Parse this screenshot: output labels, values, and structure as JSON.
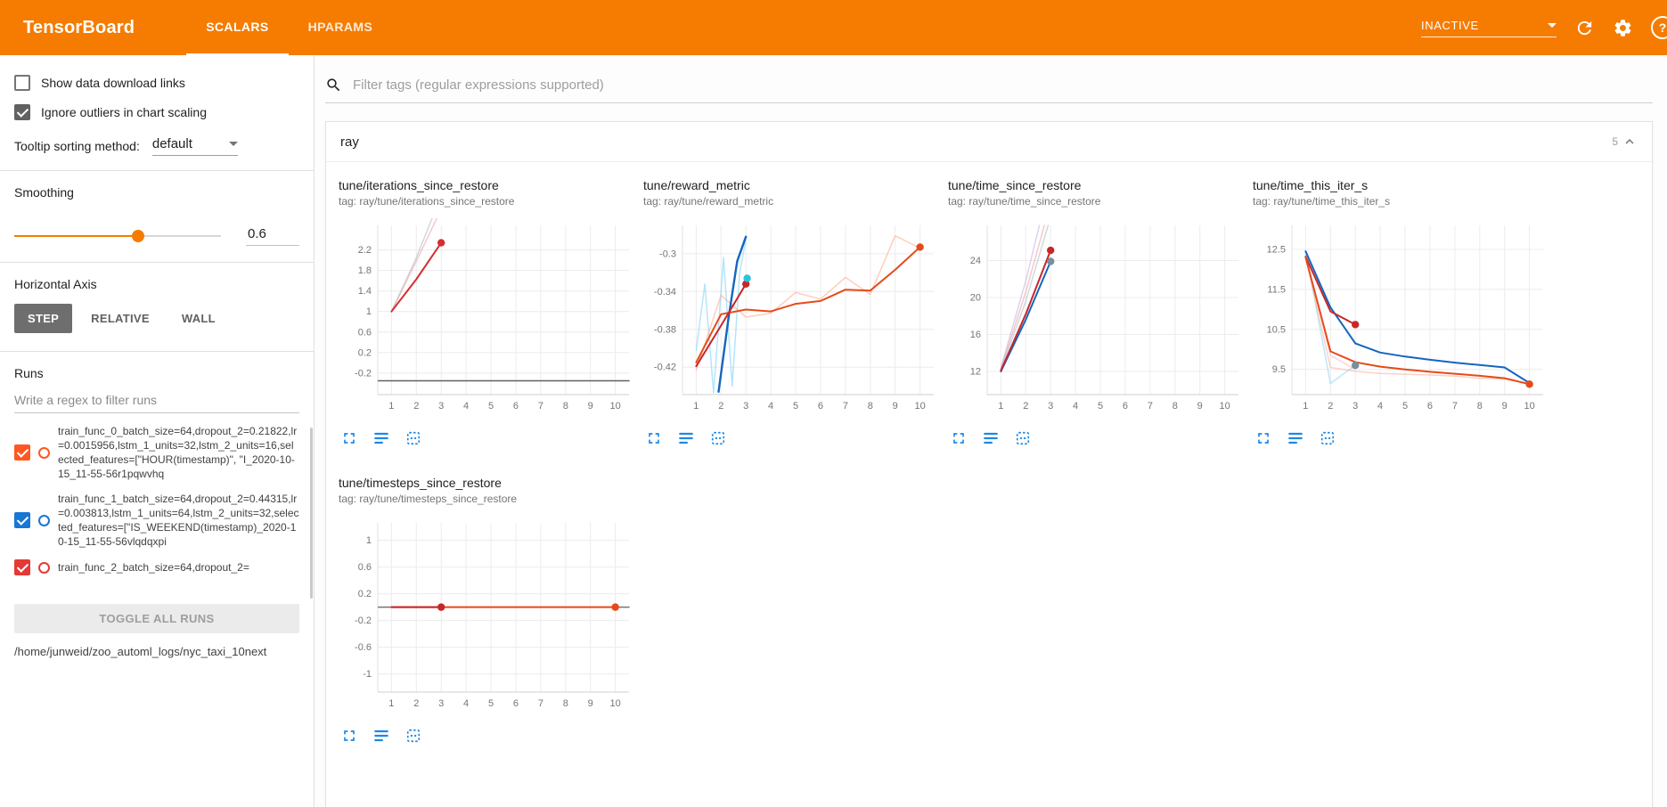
{
  "colors": {
    "accent": "#f57c00",
    "icon_blue": "#1e88e5",
    "run0": "#ff5722",
    "run1": "#1976d2"
  },
  "icons": {
    "search": "magnifier",
    "refresh": "circular-arrow",
    "settings": "gear",
    "help": "question-circle",
    "dropdown-caret": "triangle-down",
    "collapse": "chevron-up",
    "fullscreen": "corner-brackets",
    "flip-axis": "stacked-lines",
    "pin": "dashed-square"
  },
  "header": {
    "title": "TensorBoard",
    "tabs": [
      {
        "label": "SCALARS",
        "active": true
      },
      {
        "label": "HPARAMS",
        "active": false
      }
    ],
    "status": "INACTIVE"
  },
  "sidebar": {
    "options": [
      {
        "label": "Show data download links",
        "checked": false
      },
      {
        "label": "Ignore outliers in chart scaling",
        "checked": true
      }
    ],
    "tooltip_sorting_label": "Tooltip sorting method:",
    "tooltip_sorting_value": "default",
    "smoothing_label": "Smoothing",
    "smoothing_value": "0.6",
    "horizontal_axis_label": "Horizontal Axis",
    "axis_options": [
      {
        "label": "STEP",
        "selected": true
      },
      {
        "label": "RELATIVE",
        "selected": false
      },
      {
        "label": "WALL",
        "selected": false
      }
    ],
    "runs_label": "Runs",
    "runs_filter_placeholder": "Write a regex to filter runs",
    "runs": [
      {
        "label": "train_func_0_batch_size=64,dropout_2=0.21822,lr=0.0015956,lstm_1_units=32,lstm_2_units=16,selected_features=[\"HOUR(timestamp)\", \"I_2020-10-15_11-55-56r1pqwvhq",
        "checked": true,
        "color": "#ff5722"
      },
      {
        "label": "train_func_1_batch_size=64,dropout_2=0.44315,lr=0.003813,lstm_1_units=64,lstm_2_units=32,selected_features=[\"IS_WEEKEND(timestamp)_2020-10-15_11-55-56vlqdqxpi",
        "checked": true,
        "color": "#1976d2"
      },
      {
        "label": "train_func_2_batch_size=64,dropout_2=",
        "checked": true,
        "color": "#e53935"
      }
    ],
    "toggle_all_label": "TOGGLE ALL RUNS",
    "log_dir": "/home/junweid/zoo_automl_logs/nyc_taxi_10next"
  },
  "main": {
    "filter_placeholder": "Filter tags (regular expressions supported)",
    "group_title": "ray",
    "group_count": "5"
  },
  "chart_data": [
    {
      "name": "iterations_since_restore",
      "type": "line",
      "title": "tune/iterations_since_restore",
      "tag": "tag: ray/tune/iterations_since_restore",
      "xlim": [
        0.45,
        10.55
      ],
      "ylim": [
        -0.62,
        2.68
      ],
      "xticks": [
        1,
        2,
        3,
        4,
        5,
        6,
        7,
        8,
        9,
        10
      ],
      "yticks": [
        -0.2,
        0.2,
        0.6,
        1,
        1.4,
        1.8,
        2.2
      ],
      "series": [
        {
          "name": "run0-raw",
          "color": "#ef9a9a",
          "opacity": 0.55,
          "width": 1.5,
          "points": [
            [
              1,
              1
            ],
            [
              2,
              1.98
            ],
            [
              3,
              3.0
            ]
          ]
        },
        {
          "name": "run1-raw",
          "color": "#b0bec5",
          "opacity": 0.6,
          "width": 1.5,
          "points": [
            [
              1,
              1
            ],
            [
              2,
              2.05
            ],
            [
              2.95,
              3.2
            ]
          ]
        },
        {
          "name": "baseline",
          "color": "#616161",
          "opacity": 1,
          "width": 1.5,
          "points": [
            [
              0.45,
              -0.35
            ],
            [
              10.55,
              -0.35
            ]
          ]
        },
        {
          "name": "run0-smoothed",
          "color": "#d32f2f",
          "opacity": 1,
          "width": 2,
          "points": [
            [
              1,
              1
            ],
            [
              2,
              1.63
            ],
            [
              3,
              2.34
            ]
          ]
        }
      ],
      "dots": [
        {
          "x": 3,
          "y": 2.34,
          "color": "#d32f2f"
        }
      ]
    },
    {
      "name": "reward_metric",
      "type": "line",
      "title": "tune/reward_metric",
      "tag": "tag: ray/tune/reward_metric",
      "xlim": [
        0.45,
        10.55
      ],
      "ylim": [
        -0.449,
        -0.27
      ],
      "xticks": [
        1,
        2,
        3,
        4,
        5,
        6,
        7,
        8,
        9,
        10
      ],
      "yticks": [
        -0.42,
        -0.38,
        -0.34,
        -0.3
      ],
      "series": [
        {
          "name": "run1-raw",
          "color": "#81d4fa",
          "opacity": 0.6,
          "width": 1.5,
          "points": [
            [
              1,
              -0.402
            ],
            [
              1.35,
              -0.332
            ],
            [
              1.7,
              -0.447
            ],
            [
              2.1,
              -0.304
            ],
            [
              2.45,
              -0.44
            ],
            [
              2.75,
              -0.32
            ],
            [
              3,
              -0.285
            ]
          ]
        },
        {
          "name": "run0-raw",
          "color": "#ffab91",
          "opacity": 0.6,
          "width": 1.5,
          "points": [
            [
              1,
              -0.423
            ],
            [
              2,
              -0.344
            ],
            [
              3,
              -0.367
            ],
            [
              4,
              -0.363
            ],
            [
              5,
              -0.341
            ],
            [
              6,
              -0.348
            ],
            [
              7,
              -0.325
            ],
            [
              8,
              -0.343
            ],
            [
              9,
              -0.281
            ],
            [
              10,
              -0.294
            ]
          ]
        },
        {
          "name": "run1-smoothed",
          "color": "#1565c0",
          "opacity": 1,
          "width": 2.4,
          "points": [
            [
              1.9,
              -0.446
            ],
            [
              2.3,
              -0.368
            ],
            [
              2.65,
              -0.308
            ],
            [
              3,
              -0.282
            ]
          ]
        },
        {
          "name": "run0-smoothed",
          "color": "#e64a19",
          "opacity": 1,
          "width": 2,
          "points": [
            [
              1,
              -0.415
            ],
            [
              2,
              -0.364
            ],
            [
              3,
              -0.359
            ],
            [
              4,
              -0.361
            ],
            [
              5,
              -0.353
            ],
            [
              6,
              -0.35
            ],
            [
              7,
              -0.338
            ],
            [
              8,
              -0.339
            ],
            [
              9,
              -0.317
            ],
            [
              10,
              -0.293
            ]
          ]
        },
        {
          "name": "run2-smoothed",
          "color": "#c62828",
          "opacity": 1,
          "width": 2,
          "points": [
            [
              1,
              -0.419
            ],
            [
              2,
              -0.376
            ],
            [
              3,
              -0.332
            ]
          ]
        }
      ],
      "dots": [
        {
          "x": 3,
          "y": -0.332,
          "color": "#c62828"
        },
        {
          "x": 3.05,
          "y": -0.326,
          "color": "#26c6da"
        },
        {
          "x": 10,
          "y": -0.293,
          "color": "#e64a19"
        }
      ]
    },
    {
      "name": "time_since_restore",
      "type": "line",
      "title": "tune/time_since_restore",
      "tag": "tag: ray/tune/time_since_restore",
      "xlim": [
        0.45,
        10.55
      ],
      "ylim": [
        9.5,
        27.8
      ],
      "xticks": [
        1,
        2,
        3,
        4,
        5,
        6,
        7,
        8,
        9,
        10
      ],
      "yticks": [
        12,
        16,
        20,
        24
      ],
      "series": [
        {
          "name": "run0-raw",
          "color": "#ef9a9a",
          "opacity": 0.55,
          "width": 1.5,
          "points": [
            [
              1,
              12.3
            ],
            [
              2,
              20.6
            ],
            [
              2.75,
              27.8
            ]
          ]
        },
        {
          "name": "run2-raw",
          "color": "#b39ddb",
          "opacity": 0.45,
          "width": 1.5,
          "points": [
            [
              1,
              12.4
            ],
            [
              2,
              21.8
            ],
            [
              2.55,
              27.8
            ]
          ]
        },
        {
          "name": "run1-raw",
          "color": "#b0bec5",
          "opacity": 0.6,
          "width": 1.5,
          "points": [
            [
              1,
              12.2
            ],
            [
              2,
              19.6
            ],
            [
              2.9,
              27.8
            ]
          ]
        },
        {
          "name": "run1-smoothed",
          "color": "#1565c0",
          "opacity": 1,
          "width": 2,
          "points": [
            [
              1,
              12.0
            ],
            [
              2,
              17.6
            ],
            [
              3,
              23.9
            ]
          ]
        },
        {
          "name": "run2-smoothed",
          "color": "#c62828",
          "opacity": 1,
          "width": 2,
          "points": [
            [
              1,
              12.1
            ],
            [
              2,
              18.2
            ],
            [
              3,
              25.1
            ]
          ]
        }
      ],
      "dots": [
        {
          "x": 3,
          "y": 25.1,
          "color": "#c62828"
        },
        {
          "x": 3,
          "y": 23.9,
          "color": "#78909c"
        }
      ]
    },
    {
      "name": "time_this_iter_s",
      "type": "line",
      "title": "tune/time_this_iter_s",
      "tag": "tag: ray/tune/time_this_iter_s",
      "xlim": [
        0.45,
        10.55
      ],
      "ylim": [
        8.87,
        13.1
      ],
      "xticks": [
        1,
        2,
        3,
        4,
        5,
        6,
        7,
        8,
        9,
        10
      ],
      "yticks": [
        9.5,
        10.5,
        11.5,
        12.5
      ],
      "series": [
        {
          "name": "run1-raw",
          "color": "#81d4fa",
          "opacity": 0.55,
          "width": 1.5,
          "points": [
            [
              1,
              12.45
            ],
            [
              2,
              9.15
            ],
            [
              3,
              9.6
            ]
          ]
        },
        {
          "name": "run2-raw",
          "color": "#f8bbd0",
          "opacity": 0.65,
          "width": 1.5,
          "points": [
            [
              1,
              12.35
            ],
            [
              2,
              9.85
            ],
            [
              3,
              9.5
            ]
          ]
        },
        {
          "name": "run0-raw",
          "color": "#ffab91",
          "opacity": 0.55,
          "width": 1.5,
          "points": [
            [
              1,
              12.3
            ],
            [
              2,
              9.55
            ],
            [
              3,
              9.45
            ],
            [
              4,
              9.4
            ],
            [
              5,
              9.38
            ],
            [
              6,
              9.36
            ],
            [
              7,
              9.33
            ],
            [
              8,
              9.28
            ],
            [
              9,
              9.26
            ],
            [
              10,
              9.15
            ]
          ]
        },
        {
          "name": "run1-smoothed",
          "color": "#1565c0",
          "opacity": 1,
          "width": 2,
          "points": [
            [
              1,
              12.45
            ],
            [
              2,
              11.05
            ],
            [
              3,
              10.15
            ],
            [
              4,
              9.92
            ],
            [
              5,
              9.82
            ],
            [
              6,
              9.74
            ],
            [
              7,
              9.67
            ],
            [
              8,
              9.61
            ],
            [
              9,
              9.55
            ],
            [
              10,
              9.16
            ]
          ]
        },
        {
          "name": "run2-smoothed",
          "color": "#c62828",
          "opacity": 1,
          "width": 2,
          "points": [
            [
              1,
              12.32
            ],
            [
              2,
              10.95
            ],
            [
              3,
              10.62
            ]
          ]
        },
        {
          "name": "run0-smoothed",
          "color": "#e64a19",
          "opacity": 1,
          "width": 2,
          "points": [
            [
              1,
              12.3
            ],
            [
              2,
              9.95
            ],
            [
              3,
              9.68
            ],
            [
              4,
              9.57
            ],
            [
              5,
              9.5
            ],
            [
              6,
              9.44
            ],
            [
              7,
              9.39
            ],
            [
              8,
              9.34
            ],
            [
              9,
              9.28
            ],
            [
              10,
              9.13
            ]
          ]
        }
      ],
      "dots": [
        {
          "x": 3,
          "y": 10.62,
          "color": "#c62828"
        },
        {
          "x": 3,
          "y": 9.6,
          "color": "#78909c"
        },
        {
          "x": 10,
          "y": 9.13,
          "color": "#e64a19"
        }
      ]
    },
    {
      "name": "timesteps_since_restore",
      "type": "line",
      "title": "tune/timesteps_since_restore",
      "tag": "tag: ray/tune/timesteps_since_restore",
      "xlim": [
        0.45,
        10.55
      ],
      "ylim": [
        -1.27,
        1.26
      ],
      "xticks": [
        1,
        2,
        3,
        4,
        5,
        6,
        7,
        8,
        9,
        10
      ],
      "yticks": [
        -1,
        -0.6,
        -0.2,
        0.2,
        0.6,
        1
      ],
      "series": [
        {
          "name": "baseline",
          "color": "#757575",
          "opacity": 1,
          "width": 1.5,
          "points": [
            [
              0.45,
              0
            ],
            [
              10.55,
              0
            ]
          ]
        },
        {
          "name": "run0-smoothed",
          "color": "#e64a19",
          "opacity": 1,
          "width": 2,
          "points": [
            [
              1,
              0
            ],
            [
              10,
              0
            ]
          ]
        },
        {
          "name": "run2-smoothed",
          "color": "#c62828",
          "opacity": 1,
          "width": 2,
          "points": [
            [
              1,
              0
            ],
            [
              3,
              0
            ]
          ]
        }
      ],
      "dots": [
        {
          "x": 3,
          "y": 0,
          "color": "#c62828"
        },
        {
          "x": 10,
          "y": 0,
          "color": "#e64a19"
        }
      ]
    }
  ]
}
